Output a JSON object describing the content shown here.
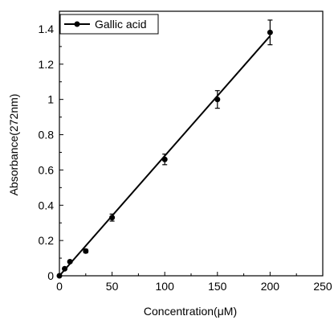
{
  "chart_data": {
    "type": "scatter",
    "xlabel": "Concentration(μM)",
    "ylabel": "Absorbance(272nm)",
    "xlim": [
      0,
      250
    ],
    "ylim": [
      0,
      1.5
    ],
    "x_ticks": [
      0,
      50,
      100,
      150,
      200,
      250
    ],
    "x_tick_labels": [
      "0",
      "50",
      "100",
      "150",
      "200",
      "250"
    ],
    "y_ticks": [
      0,
      0.2,
      0.4,
      0.6,
      0.8,
      1.0,
      1.2,
      1.4
    ],
    "y_tick_labels": [
      "0",
      "0.2",
      "0.4",
      "0.6",
      "0.8",
      "1",
      "1.2",
      "1.4"
    ],
    "grid": false,
    "legend_position": "top-left",
    "series": [
      {
        "name": "Gallic acid",
        "color": "#000000",
        "x": [
          0,
          5,
          10,
          25,
          50,
          100,
          150,
          200
        ],
        "y": [
          0.0,
          0.04,
          0.08,
          0.14,
          0.33,
          0.66,
          1.0,
          1.38
        ],
        "y_error": [
          0.0,
          0.005,
          0.005,
          0.01,
          0.02,
          0.03,
          0.05,
          0.07
        ]
      }
    ],
    "fit_line": {
      "x": [
        0,
        200
      ],
      "y": [
        0.0,
        1.36
      ]
    }
  }
}
